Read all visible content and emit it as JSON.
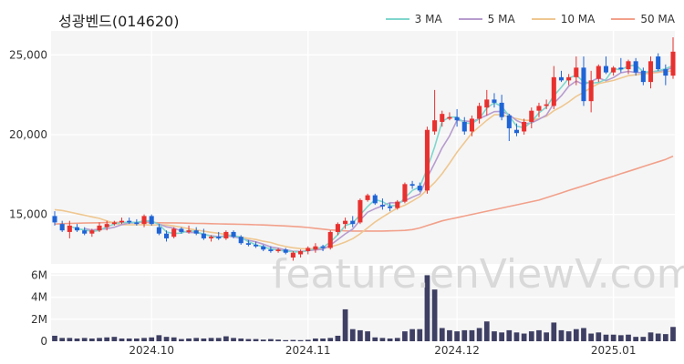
{
  "header": {
    "title": "성광벤드(014620)"
  },
  "watermark": "feature.enViewV.com",
  "colors": {
    "up": "#e8312f",
    "down": "#1f64d6",
    "ma3": "#7fd6cd",
    "ma5": "#b79ccf",
    "ma10": "#efc790",
    "ma50": "#f2a08a",
    "volume": "#3e3f63",
    "grid": "#ffffff",
    "plot_bg": "#f5f5f5"
  },
  "chart_data": [
    {
      "type": "candlestick",
      "legend": [
        "3 MA",
        "5 MA",
        "10 MA",
        "50 MA"
      ],
      "legend_position": "top-right",
      "y_ticks": [
        15000,
        20000,
        25000
      ],
      "y_tick_labels": [
        "15,000",
        "20,000",
        "25,000"
      ],
      "ylim": [
        11900,
        26500
      ],
      "x_ticks": [
        {
          "label": "2024.10",
          "index": 13
        },
        {
          "label": "2024.11",
          "index": 34
        },
        {
          "label": "2024.12",
          "index": 54
        },
        {
          "label": "2025.01",
          "index": 75
        }
      ],
      "ohlc": [
        [
          14900,
          15200,
          14300,
          14500
        ],
        [
          14400,
          14600,
          13900,
          14000
        ],
        [
          13900,
          14600,
          13500,
          14300
        ],
        [
          14200,
          14400,
          13900,
          14000
        ],
        [
          14000,
          14200,
          13700,
          13800
        ],
        [
          13800,
          14100,
          13600,
          14000
        ],
        [
          14000,
          14500,
          13900,
          14300
        ],
        [
          14200,
          14600,
          14000,
          14400
        ],
        [
          14400,
          14600,
          14300,
          14500
        ],
        [
          14500,
          14800,
          14400,
          14600
        ],
        [
          14600,
          14800,
          14400,
          14500
        ],
        [
          14500,
          14700,
          14300,
          14400
        ],
        [
          14400,
          15000,
          14200,
          14900
        ],
        [
          14900,
          15000,
          14300,
          14400
        ],
        [
          14200,
          14400,
          13700,
          13800
        ],
        [
          13800,
          14000,
          13300,
          13500
        ],
        [
          13600,
          14200,
          13500,
          14100
        ],
        [
          14100,
          14200,
          13800,
          13900
        ],
        [
          13900,
          14300,
          13800,
          14000
        ],
        [
          14000,
          14200,
          13700,
          13800
        ],
        [
          13800,
          14100,
          13400,
          13500
        ],
        [
          13500,
          13700,
          13300,
          13600
        ],
        [
          13600,
          13900,
          13400,
          13500
        ],
        [
          13500,
          14000,
          13400,
          13900
        ],
        [
          13900,
          14000,
          13500,
          13600
        ],
        [
          13600,
          13700,
          13100,
          13200
        ],
        [
          13200,
          13400,
          13000,
          13100
        ],
        [
          13100,
          13300,
          12900,
          13000
        ],
        [
          13000,
          13100,
          12700,
          12800
        ],
        [
          12800,
          13000,
          12600,
          12700
        ],
        [
          12700,
          12900,
          12600,
          12800
        ],
        [
          12800,
          12900,
          12500,
          12600
        ],
        [
          12300,
          12700,
          12100,
          12600
        ],
        [
          12500,
          12800,
          12300,
          12700
        ],
        [
          12700,
          13000,
          12500,
          12900
        ],
        [
          12800,
          13200,
          12600,
          13000
        ],
        [
          13000,
          13100,
          12700,
          12900
        ],
        [
          12900,
          14000,
          12800,
          13900
        ],
        [
          13900,
          14500,
          13700,
          14400
        ],
        [
          14400,
          14800,
          14100,
          14600
        ],
        [
          14600,
          14900,
          14200,
          14400
        ],
        [
          14500,
          16000,
          14400,
          15900
        ],
        [
          15900,
          16300,
          15800,
          16200
        ],
        [
          16200,
          16300,
          15600,
          15700
        ],
        [
          15600,
          16000,
          15300,
          15500
        ],
        [
          15500,
          15700,
          15200,
          15400
        ],
        [
          15400,
          15900,
          15300,
          15800
        ],
        [
          15800,
          17000,
          15700,
          16900
        ],
        [
          16900,
          17100,
          16600,
          16800
        ],
        [
          16800,
          17000,
          16400,
          16500
        ],
        [
          16500,
          20500,
          16300,
          20300
        ],
        [
          20200,
          22800,
          20000,
          20900
        ],
        [
          20800,
          21500,
          20500,
          21300
        ],
        [
          21000,
          21400,
          20900,
          21100
        ],
        [
          21100,
          21600,
          20500,
          20900
        ],
        [
          20800,
          21100,
          20000,
          20200
        ],
        [
          20200,
          21200,
          19900,
          21000
        ],
        [
          21000,
          22000,
          20700,
          21800
        ],
        [
          21700,
          22800,
          21200,
          22200
        ],
        [
          22200,
          22600,
          21700,
          22000
        ],
        [
          22000,
          22500,
          20900,
          21100
        ],
        [
          21200,
          21300,
          19600,
          20400
        ],
        [
          20300,
          20700,
          19900,
          20100
        ],
        [
          20200,
          21000,
          20000,
          20800
        ],
        [
          20800,
          21700,
          20400,
          21500
        ],
        [
          21500,
          22000,
          21100,
          21800
        ],
        [
          21800,
          22200,
          21600,
          21900
        ],
        [
          21800,
          24300,
          21600,
          23600
        ],
        [
          23600,
          24000,
          23300,
          23400
        ],
        [
          23400,
          23800,
          23100,
          23600
        ],
        [
          23600,
          24900,
          23100,
          24200
        ],
        [
          24200,
          24900,
          21800,
          22100
        ],
        [
          22100,
          24000,
          21400,
          23400
        ],
        [
          23500,
          24400,
          23300,
          24300
        ],
        [
          24300,
          24900,
          23800,
          23900
        ],
        [
          23900,
          24300,
          23700,
          24200
        ],
        [
          24200,
          24800,
          23900,
          24100
        ],
        [
          24100,
          24700,
          23800,
          24600
        ],
        [
          24600,
          24800,
          23700,
          23900
        ],
        [
          24000,
          24200,
          23100,
          23300
        ],
        [
          23300,
          24900,
          22900,
          24600
        ],
        [
          24900,
          25100,
          24000,
          24100
        ],
        [
          24100,
          24400,
          23100,
          23700
        ],
        [
          23700,
          26100,
          23500,
          25200
        ]
      ],
      "series": [
        {
          "name": "3 MA",
          "values": [
            null,
            null,
            14267,
            14100,
            14033,
            13933,
            14000,
            14233,
            14400,
            14500,
            14500,
            14500,
            14600,
            14600,
            14367,
            13900,
            13800,
            13833,
            14000,
            13900,
            13767,
            13633,
            13533,
            13667,
            13667,
            13567,
            13300,
            13100,
            12967,
            12833,
            12767,
            12700,
            12667,
            12633,
            12733,
            12867,
            12933,
            13267,
            13733,
            14300,
            14467,
            14967,
            15500,
            15933,
            15800,
            15533,
            15567,
            16033,
            16500,
            16733,
            17867,
            19233,
            20833,
            21100,
            21100,
            20733,
            20700,
            21000,
            21667,
            22000,
            21767,
            21167,
            20533,
            20433,
            20800,
            21367,
            21733,
            22433,
            22967,
            23533,
            23733,
            23300,
            23233,
            23267,
            23467,
            24133,
            24067,
            24300,
            24367,
            23933,
            23933,
            24000,
            24133,
            24333
          ]
        },
        {
          "name": "5 MA",
          "values": [
            null,
            null,
            null,
            null,
            14120,
            14020,
            14080,
            14100,
            14200,
            14360,
            14460,
            14480,
            14580,
            14560,
            14400,
            14220,
            14140,
            13960,
            13860,
            13860,
            13760,
            13660,
            13600,
            13660,
            13600,
            13500,
            13380,
            13280,
            13140,
            12960,
            12880,
            12780,
            12700,
            12680,
            12720,
            12780,
            12820,
            13080,
            13420,
            13780,
            14080,
            14640,
            15140,
            15360,
            15540,
            15740,
            15720,
            15860,
            16080,
            16280,
            17300,
            18220,
            19180,
            19920,
            20900,
            20860,
            20820,
            21000,
            21220,
            21440,
            21460,
            21260,
            20880,
            20680,
            20740,
            20960,
            21220,
            21960,
            22440,
            23040,
            23360,
            23140,
            23340,
            23560,
            23380,
            23580,
            23880,
            23960,
            23900,
            23880,
            23940,
            23960,
            24060,
            24200
          ]
        },
        {
          "name": "10 MA",
          "values": [
            15300,
            15250,
            15150,
            15050,
            14950,
            14850,
            14750,
            14600,
            14450,
            14350,
            14350,
            14350,
            14350,
            14330,
            14350,
            14340,
            14280,
            14200,
            14100,
            14020,
            13950,
            13880,
            13820,
            13740,
            13660,
            13580,
            13500,
            13430,
            13320,
            13240,
            13100,
            12990,
            12910,
            12860,
            12830,
            12860,
            12880,
            12960,
            13100,
            13270,
            13480,
            13790,
            14160,
            14530,
            14830,
            15130,
            15400,
            15580,
            15840,
            16120,
            16550,
            17000,
            17550,
            18200,
            18900,
            19500,
            20100,
            20500,
            20900,
            21250,
            21250,
            21100,
            21000,
            20900,
            20900,
            21000,
            21150,
            21500,
            21750,
            22050,
            22400,
            22650,
            22950,
            23200,
            23300,
            23400,
            23550,
            23700,
            23750,
            23800,
            23850,
            23900,
            23950,
            24000
          ]
        },
        {
          "name": "50 MA",
          "values": [
            14400,
            14420,
            14440,
            14450,
            14460,
            14470,
            14480,
            14490,
            14500,
            14500,
            14500,
            14500,
            14500,
            14490,
            14480,
            14470,
            14470,
            14460,
            14450,
            14440,
            14430,
            14420,
            14410,
            14400,
            14390,
            14380,
            14370,
            14350,
            14340,
            14320,
            14300,
            14280,
            14250,
            14220,
            14180,
            14130,
            14080,
            14030,
            14000,
            13970,
            13960,
            13960,
            13960,
            13960,
            13960,
            13970,
            13980,
            14000,
            14050,
            14150,
            14300,
            14450,
            14600,
            14700,
            14800,
            14900,
            15000,
            15100,
            15200,
            15300,
            15400,
            15500,
            15600,
            15700,
            15800,
            15900,
            16050,
            16200,
            16350,
            16500,
            16650,
            16800,
            16950,
            17100,
            17250,
            17400,
            17550,
            17700,
            17850,
            18000,
            18150,
            18300,
            18450,
            18650
          ]
        }
      ]
    },
    {
      "type": "bar",
      "name": "volume",
      "y_ticks": [
        0,
        2000000,
        4000000,
        6000000
      ],
      "y_tick_labels": [
        "0",
        "2M",
        "4M",
        "6M"
      ],
      "ylim": [
        0,
        6200000
      ],
      "values": [
        500000,
        300000,
        300000,
        250000,
        300000,
        250000,
        300000,
        350000,
        400000,
        250000,
        250000,
        250000,
        300000,
        350000,
        550000,
        400000,
        350000,
        200000,
        250000,
        300000,
        250000,
        300000,
        300000,
        450000,
        300000,
        250000,
        200000,
        200000,
        150000,
        200000,
        150000,
        100000,
        120000,
        100000,
        130000,
        250000,
        250000,
        300000,
        500000,
        2900000,
        1100000,
        1000000,
        900000,
        350000,
        300000,
        250000,
        300000,
        900000,
        1100000,
        1100000,
        6000000,
        4700000,
        1200000,
        1000000,
        900000,
        1000000,
        1000000,
        1200000,
        1800000,
        900000,
        800000,
        1000000,
        800000,
        700000,
        900000,
        1000000,
        800000,
        1700000,
        1000000,
        900000,
        1100000,
        1200000,
        700000,
        800000,
        600000,
        600000,
        550000,
        600000,
        400000,
        400000,
        800000,
        700000,
        650000,
        1300000
      ]
    }
  ]
}
